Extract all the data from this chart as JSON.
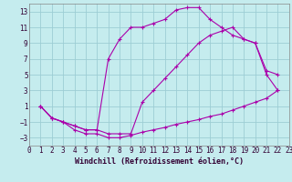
{
  "xlabel": "Windchill (Refroidissement éolien,°C)",
  "bg_color": "#c5ecee",
  "grid_color": "#9dcdd4",
  "line_color": "#aa00aa",
  "marker": "+",
  "xlim": [
    0,
    23
  ],
  "ylim": [
    -4,
    14
  ],
  "xticks": [
    0,
    1,
    2,
    3,
    4,
    5,
    6,
    7,
    8,
    9,
    10,
    11,
    12,
    13,
    14,
    15,
    16,
    17,
    18,
    19,
    20,
    21,
    22,
    23
  ],
  "yticks": [
    -3,
    -1,
    1,
    3,
    5,
    7,
    9,
    11,
    13
  ],
  "line1_x": [
    1,
    2,
    3,
    4,
    5,
    6,
    7,
    8,
    9,
    10,
    11,
    12,
    13,
    14,
    15,
    16,
    17,
    18,
    19,
    20,
    21,
    22
  ],
  "line1_y": [
    1.0,
    -0.5,
    -1.0,
    -2.0,
    -2.5,
    -2.5,
    -3.0,
    -3.0,
    -2.7,
    -2.3,
    -2.0,
    -1.7,
    -1.3,
    -1.0,
    -0.7,
    -0.3,
    0.0,
    0.5,
    1.0,
    1.5,
    2.0,
    3.0
  ],
  "line2_x": [
    1,
    2,
    3,
    4,
    5,
    6,
    7,
    8,
    9,
    10,
    11,
    12,
    13,
    14,
    15,
    16,
    17,
    18,
    19,
    20,
    21,
    22
  ],
  "line2_y": [
    1.0,
    -0.5,
    -1.0,
    -1.5,
    -2.0,
    -2.0,
    7.0,
    9.5,
    11.0,
    11.0,
    11.5,
    12.0,
    13.2,
    13.5,
    13.5,
    12.0,
    11.0,
    10.0,
    9.5,
    9.0,
    5.0,
    3.0
  ],
  "line3_x": [
    1,
    2,
    3,
    4,
    5,
    6,
    7,
    8,
    9,
    10,
    11,
    12,
    13,
    14,
    15,
    16,
    17,
    18,
    19,
    20,
    21,
    22
  ],
  "line3_y": [
    1.0,
    -0.5,
    -1.0,
    -1.5,
    -2.0,
    -2.0,
    -2.5,
    -2.5,
    -2.5,
    1.5,
    3.0,
    4.5,
    6.0,
    7.5,
    9.0,
    10.0,
    10.5,
    11.0,
    9.5,
    9.0,
    5.5,
    5.0
  ],
  "tick_fontsize": 5.5,
  "xlabel_fontsize": 6.0,
  "ms": 3,
  "lw": 0.8
}
